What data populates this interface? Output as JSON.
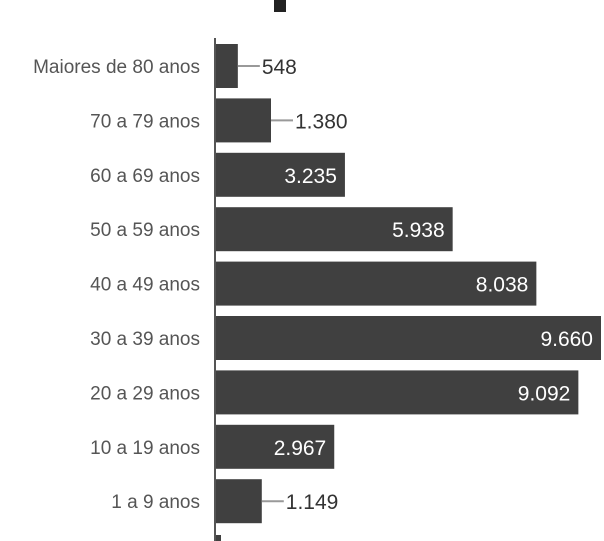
{
  "chart_data": {
    "type": "bar",
    "orientation": "horizontal",
    "title": "",
    "xlabel": "",
    "ylabel": "",
    "xlim": [
      0,
      9660
    ],
    "grid": false,
    "legend": "none",
    "categories": [
      "Maiores de 80 anos",
      "70 a 79 anos",
      "60 a 69 anos",
      "50 a 59 anos",
      "40 a 49 anos",
      "30 a 39 anos",
      "20 a 29 anos",
      "10 a 19 anos",
      "1 a 9 anos"
    ],
    "values": [
      548,
      1380,
      3235,
      5938,
      8038,
      9660,
      9092,
      2967,
      1149
    ],
    "value_labels": [
      "548",
      "1.380",
      "3.235",
      "5.938",
      "8.038",
      "9.660",
      "9.092",
      "2.967",
      "1.149"
    ],
    "colors": {
      "bar": "#404040",
      "axis": "#555555",
      "label_inside": "#ffffff",
      "label_outside": "#333333",
      "leader": "#999999",
      "category_text": "#555555"
    }
  }
}
